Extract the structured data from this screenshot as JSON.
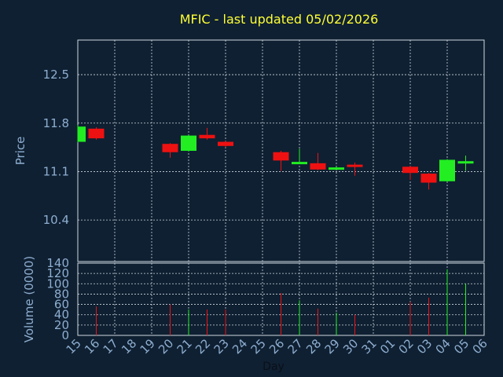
{
  "chart_data": [
    {
      "type": "candlestick",
      "title": "MFIC - last updated 05/02/2026",
      "ylabel": "Price",
      "ylim": [
        9.8,
        13.0
      ],
      "yticks": [
        10.4,
        11.1,
        11.8,
        12.5
      ],
      "ytick_labels": [
        "10.4",
        "11.1",
        "11.8",
        "12.5"
      ],
      "grid": true,
      "up_color": "#22ee22",
      "down_color": "#ee1111",
      "x_labels": [
        "15",
        "16",
        "17",
        "18",
        "19",
        "20",
        "21",
        "22",
        "23",
        "24",
        "25",
        "26",
        "27",
        "28",
        "29",
        "30",
        "31",
        "01",
        "02",
        "03",
        "04",
        "05",
        "06"
      ],
      "candles": [
        {
          "day": "15",
          "open": 11.53,
          "close": 11.75,
          "high": 11.77,
          "low": 11.52
        },
        {
          "day": "16",
          "open": 11.72,
          "close": 11.58,
          "high": 11.74,
          "low": 11.56
        },
        {
          "day": "20",
          "open": 11.5,
          "close": 11.38,
          "high": 11.51,
          "low": 11.3
        },
        {
          "day": "21",
          "open": 11.4,
          "close": 11.62,
          "high": 11.63,
          "low": 11.39
        },
        {
          "day": "22",
          "open": 11.63,
          "close": 11.58,
          "high": 11.73,
          "low": 11.56
        },
        {
          "day": "23",
          "open": 11.53,
          "close": 11.47,
          "high": 11.54,
          "low": 11.45
        },
        {
          "day": "26",
          "open": 11.38,
          "close": 11.26,
          "high": 11.4,
          "low": 11.11
        },
        {
          "day": "27",
          "open": 11.23,
          "close": 11.24,
          "high": 11.43,
          "low": 11.21
        },
        {
          "day": "28",
          "open": 11.22,
          "close": 11.13,
          "high": 11.37,
          "low": 11.12
        },
        {
          "day": "29",
          "open": 11.15,
          "close": 11.16,
          "high": 11.17,
          "low": 11.13
        },
        {
          "day": "30",
          "open": 11.2,
          "close": 11.18,
          "high": 11.23,
          "low": 11.04
        },
        {
          "day": "02",
          "open": 11.17,
          "close": 11.08,
          "high": 11.18,
          "low": 10.98
        },
        {
          "day": "03",
          "open": 11.07,
          "close": 10.94,
          "high": 11.08,
          "low": 10.84
        },
        {
          "day": "04",
          "open": 10.96,
          "close": 11.27,
          "high": 11.28,
          "low": 10.95
        },
        {
          "day": "05",
          "open": 11.22,
          "close": 11.25,
          "high": 11.33,
          "low": 11.11
        }
      ]
    },
    {
      "type": "bar",
      "ylabel": "Volume (0000)",
      "xlabel": "Day",
      "ylim": [
        0,
        140
      ],
      "yticks": [
        0,
        20,
        40,
        60,
        80,
        100,
        120,
        140
      ],
      "ytick_labels": [
        "0",
        "20",
        "40",
        "60",
        "80",
        "100",
        "120",
        "140"
      ],
      "grid": true,
      "bars": [
        {
          "day": "16",
          "value": 56,
          "color": "#ee1111"
        },
        {
          "day": "20",
          "value": 60,
          "color": "#ee1111"
        },
        {
          "day": "21",
          "value": 50,
          "color": "#22ee22"
        },
        {
          "day": "22",
          "value": 50,
          "color": "#ee1111"
        },
        {
          "day": "23",
          "value": 50,
          "color": "#ee1111"
        },
        {
          "day": "26",
          "value": 82,
          "color": "#ee1111"
        },
        {
          "day": "27",
          "value": 68,
          "color": "#22ee22"
        },
        {
          "day": "28",
          "value": 52,
          "color": "#ee1111"
        },
        {
          "day": "29",
          "value": 44,
          "color": "#22ee22"
        },
        {
          "day": "30",
          "value": 40,
          "color": "#ee1111"
        },
        {
          "day": "02",
          "value": 65,
          "color": "#ee1111"
        },
        {
          "day": "03",
          "value": 73,
          "color": "#ee1111"
        },
        {
          "day": "04",
          "value": 128,
          "color": "#22ee22"
        },
        {
          "day": "05",
          "value": 100,
          "color": "#22ee22"
        }
      ]
    }
  ]
}
